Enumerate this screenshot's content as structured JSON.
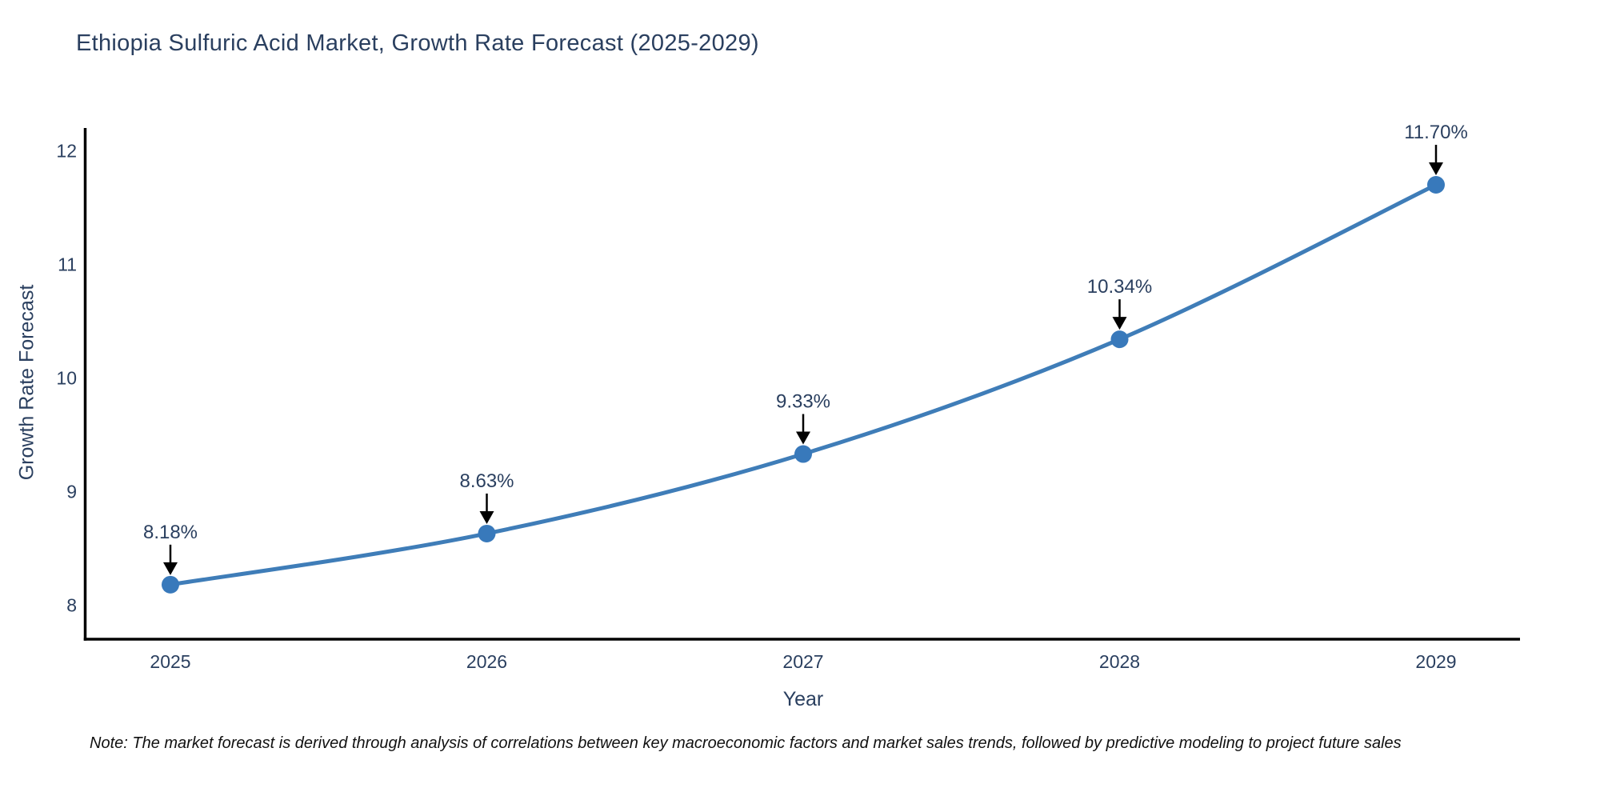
{
  "chart_data": {
    "type": "line",
    "title": "Ethiopia Sulfuric Acid Market, Growth Rate Forecast (2025-2029)",
    "xlabel": "Year",
    "ylabel": "Growth Rate Forecast",
    "x": [
      "2025",
      "2026",
      "2027",
      "2028",
      "2029"
    ],
    "series": [
      {
        "name": "Growth Rate Forecast",
        "values": [
          8.18,
          8.63,
          9.33,
          10.34,
          11.7
        ],
        "point_labels": [
          "8.18%",
          "8.63%",
          "9.33%",
          "10.34%",
          "11.70%"
        ],
        "line_color": "#3f7db8",
        "marker_color": "#3879bb"
      }
    ],
    "yticks": [
      8,
      9,
      10,
      11,
      12
    ],
    "ylim": [
      7.7,
      12.2
    ],
    "grid": false,
    "legend_position": "none",
    "line_shape": "spline",
    "annotations_have_arrows": true
  },
  "note": "Note: The market forecast is derived through analysis of correlations between key macroeconomic factors and market sales trends, followed by predictive modeling to project future sales",
  "colors": {
    "title_text": "#2a3f5f",
    "tick_text": "#2a3f5f",
    "annotation_text": "#2a3f5f",
    "axis_line": "#000000",
    "arrow": "#000000",
    "background": "#ffffff",
    "note_text": "#111111"
  }
}
